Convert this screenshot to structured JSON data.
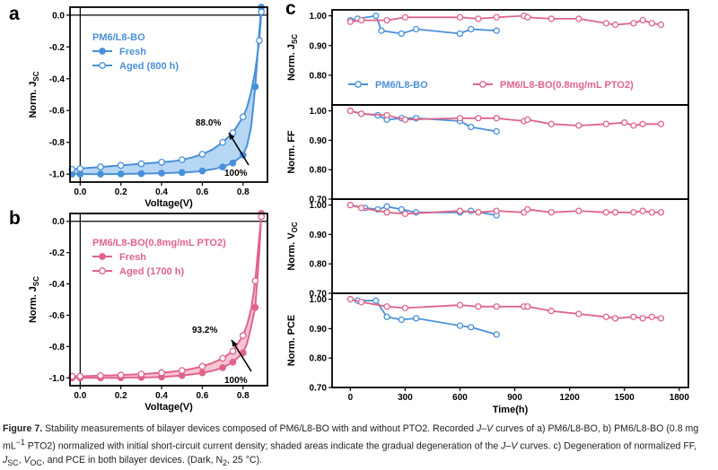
{
  "colors": {
    "blue": "#4a90d9",
    "blue_fill": "#a9d0f2",
    "pink": "#e0648a",
    "pink_fill": "#f4bccc",
    "axis": "#000000"
  },
  "chart_data": [
    {
      "panel": "a",
      "type": "line",
      "title": "PM6/L8-BO",
      "xlabel": "Voltage(V)",
      "ylabel_main": "Norm. J",
      "ylabel_sub": "SC",
      "xlim": [
        -0.05,
        0.92
      ],
      "ylim": [
        -1.05,
        0.05
      ],
      "xticks": [
        0.0,
        0.2,
        0.4,
        0.6,
        0.8
      ],
      "xtick_labels": [
        "0.0",
        "0.2",
        "0.4",
        "0.6",
        "0.8"
      ],
      "yticks": [
        0.0,
        -0.2,
        -0.4,
        -0.6,
        -0.8,
        -1.0
      ],
      "ytick_labels": [
        "0.0",
        "-0.2",
        "-0.4",
        "-0.6",
        "-0.8",
        "-1.0"
      ],
      "legend": [
        "Fresh",
        "Aged (800 h)"
      ],
      "series": [
        {
          "name": "Fresh",
          "x": [
            -0.04,
            0.0,
            0.05,
            0.1,
            0.15,
            0.2,
            0.25,
            0.3,
            0.35,
            0.4,
            0.45,
            0.5,
            0.55,
            0.6,
            0.65,
            0.7,
            0.75,
            0.8,
            0.82,
            0.84,
            0.86,
            0.88,
            0.89
          ],
          "y": [
            -1.0,
            -1.0,
            -1.0,
            -1.0,
            -1.0,
            -0.999,
            -0.998,
            -0.997,
            -0.996,
            -0.994,
            -0.992,
            -0.99,
            -0.986,
            -0.98,
            -0.97,
            -0.955,
            -0.93,
            -0.88,
            -0.82,
            -0.7,
            -0.45,
            -0.1,
            0.05
          ],
          "markers": [
            0,
            1,
            3,
            5,
            7,
            9,
            11,
            13,
            15,
            16,
            17,
            20,
            22
          ]
        },
        {
          "name": "Aged (800 h)",
          "x": [
            -0.04,
            0.0,
            0.05,
            0.1,
            0.15,
            0.2,
            0.25,
            0.3,
            0.35,
            0.4,
            0.45,
            0.5,
            0.55,
            0.6,
            0.65,
            0.7,
            0.75,
            0.8,
            0.82,
            0.84,
            0.86,
            0.88,
            0.89
          ],
          "y": [
            -0.97,
            -0.965,
            -0.96,
            -0.955,
            -0.95,
            -0.945,
            -0.94,
            -0.935,
            -0.93,
            -0.925,
            -0.92,
            -0.91,
            -0.895,
            -0.875,
            -0.845,
            -0.8,
            -0.74,
            -0.64,
            -0.58,
            -0.48,
            -0.35,
            -0.16,
            0.02
          ],
          "markers": [
            0,
            1,
            3,
            5,
            7,
            9,
            11,
            13,
            15,
            16,
            17,
            21,
            22
          ]
        }
      ],
      "annotations": [
        {
          "text": "88.0%"
        },
        {
          "text": "100%"
        }
      ]
    },
    {
      "panel": "b",
      "type": "line",
      "title": "PM6/L8-BO(0.8mg/mL PTO2)",
      "xlabel": "Voltage(V)",
      "ylabel_main": "Norm. J",
      "ylabel_sub": "SC",
      "xlim": [
        -0.05,
        0.92
      ],
      "ylim": [
        -1.05,
        0.05
      ],
      "xticks": [
        0.0,
        0.2,
        0.4,
        0.6,
        0.8
      ],
      "xtick_labels": [
        "0.0",
        "0.2",
        "0.4",
        "0.6",
        "0.8"
      ],
      "yticks": [
        0.0,
        -0.2,
        -0.4,
        -0.6,
        -0.8,
        -1.0
      ],
      "ytick_labels": [
        "0.0",
        "-0.2",
        "-0.4",
        "-0.6",
        "-0.8",
        "-1.0"
      ],
      "legend": [
        "Fresh",
        "Aged (1700 h)"
      ],
      "series": [
        {
          "name": "Fresh",
          "x": [
            -0.04,
            0.0,
            0.05,
            0.1,
            0.15,
            0.2,
            0.25,
            0.3,
            0.35,
            0.4,
            0.45,
            0.5,
            0.55,
            0.6,
            0.65,
            0.7,
            0.75,
            0.8,
            0.82,
            0.84,
            0.86,
            0.88,
            0.89
          ],
          "y": [
            -1.0,
            -1.0,
            -1.0,
            -1.0,
            -1.0,
            -0.999,
            -0.998,
            -0.997,
            -0.996,
            -0.994,
            -0.99,
            -0.985,
            -0.978,
            -0.968,
            -0.955,
            -0.935,
            -0.9,
            -0.84,
            -0.78,
            -0.67,
            -0.55,
            -0.2,
            0.05
          ],
          "markers": [
            0,
            1,
            3,
            5,
            7,
            9,
            11,
            13,
            15,
            16,
            17,
            20,
            22
          ]
        },
        {
          "name": "Aged (1700 h)",
          "x": [
            -0.04,
            0.0,
            0.05,
            0.1,
            0.15,
            0.2,
            0.25,
            0.3,
            0.35,
            0.4,
            0.45,
            0.5,
            0.55,
            0.6,
            0.65,
            0.7,
            0.75,
            0.8,
            0.82,
            0.84,
            0.86,
            0.88,
            0.89
          ],
          "y": [
            -0.99,
            -0.99,
            -0.988,
            -0.986,
            -0.984,
            -0.982,
            -0.979,
            -0.976,
            -0.972,
            -0.967,
            -0.961,
            -0.953,
            -0.942,
            -0.927,
            -0.905,
            -0.875,
            -0.83,
            -0.73,
            -0.66,
            -0.56,
            -0.38,
            -0.1,
            0.03
          ],
          "markers": [
            0,
            1,
            3,
            5,
            7,
            9,
            11,
            13,
            15,
            16,
            17,
            20,
            22
          ]
        }
      ],
      "annotations": [
        {
          "text": "93.2%"
        },
        {
          "text": "100%"
        }
      ]
    },
    {
      "panel": "c",
      "type": "line",
      "xlabel": "Time(h)",
      "xlim": [
        -100,
        1850
      ],
      "xticks": [
        0,
        300,
        600,
        900,
        1200,
        1500,
        1800
      ],
      "xtick_labels": [
        "0",
        "300",
        "600",
        "900",
        "1200",
        "1500",
        "1800"
      ],
      "legend": [
        "PM6/L8-BO",
        "PM6/L8-BO(0.8mg/mL PTO2)"
      ],
      "subplots": [
        {
          "ylabel_main": "Norm. J",
          "ylabel_sub": "SC",
          "ylim": [
            0.7,
            1.02
          ],
          "yticks": [
            0.8,
            0.9,
            1.0
          ],
          "ytick_labels": [
            "0.80",
            "0.90",
            "1.00"
          ],
          "series": [
            {
              "name": "PM6/L8-BO",
              "x": [
                0,
                40,
                140,
                170,
                280,
                360,
                600,
                660,
                800
              ],
              "y": [
                0.985,
                0.99,
                1.0,
                0.95,
                0.94,
                0.955,
                0.94,
                0.955,
                0.95
              ]
            },
            {
              "name": "PM6/L8-BO(0.8mg/mL PTO2)",
              "x": [
                0,
                60,
                200,
                300,
                600,
                700,
                800,
                950,
                970,
                1100,
                1250,
                1400,
                1450,
                1550,
                1600,
                1650,
                1700
              ],
              "y": [
                0.98,
                0.985,
                0.985,
                0.995,
                0.995,
                0.99,
                0.995,
                1.0,
                0.995,
                0.99,
                0.99,
                0.975,
                0.97,
                0.975,
                0.985,
                0.975,
                0.97
              ]
            }
          ]
        },
        {
          "ylabel_main": "Norm. FF",
          "ylabel_sub": "",
          "ylim": [
            0.7,
            1.02
          ],
          "yticks": [
            0.7,
            0.8,
            0.9,
            1.0
          ],
          "ytick_labels": [
            "0.70",
            "0.80",
            "0.90",
            "1.00"
          ],
          "series": [
            {
              "name": "PM6/L8-BO",
              "x": [
                0,
                60,
                150,
                200,
                280,
                360,
                600,
                660,
                800
              ],
              "y": [
                1.0,
                0.99,
                0.985,
                0.97,
                0.975,
                0.975,
                0.965,
                0.945,
                0.93
              ]
            },
            {
              "name": "PM6/L8-BO(0.8mg/mL PTO2)",
              "x": [
                0,
                60,
                200,
                300,
                600,
                700,
                800,
                950,
                970,
                1100,
                1250,
                1400,
                1500,
                1550,
                1600,
                1700
              ],
              "y": [
                1.0,
                0.99,
                0.985,
                0.97,
                0.975,
                0.975,
                0.975,
                0.965,
                0.97,
                0.955,
                0.95,
                0.955,
                0.96,
                0.95,
                0.955,
                0.955
              ]
            }
          ]
        },
        {
          "ylabel_main": "Norm. V",
          "ylabel_sub": "OC",
          "ylim": [
            0.7,
            1.02
          ],
          "yticks": [
            0.7,
            0.8,
            0.9,
            1.0
          ],
          "ytick_labels": [
            "0.70",
            "0.80",
            "0.90",
            "1.00"
          ],
          "series": [
            {
              "name": "PM6/L8-BO",
              "x": [
                0,
                80,
                150,
                200,
                280,
                360,
                600,
                660,
                800
              ],
              "y": [
                1.0,
                0.99,
                0.985,
                0.995,
                0.985,
                0.975,
                0.975,
                0.98,
                0.965
              ]
            },
            {
              "name": "PM6/L8-BO(0.8mg/mL PTO2)",
              "x": [
                0,
                60,
                200,
                300,
                600,
                700,
                800,
                950,
                970,
                1100,
                1250,
                1400,
                1450,
                1550,
                1600,
                1650,
                1700
              ],
              "y": [
                1.0,
                0.99,
                0.975,
                0.97,
                0.98,
                0.975,
                0.98,
                0.975,
                0.985,
                0.975,
                0.98,
                0.975,
                0.975,
                0.975,
                0.98,
                0.975,
                0.975
              ]
            }
          ]
        },
        {
          "ylabel_main": "Norm. PCE",
          "ylabel_sub": "",
          "ylim": [
            0.7,
            1.02
          ],
          "yticks": [
            0.7,
            0.8,
            0.9,
            1.0
          ],
          "ytick_labels": [
            "0.70",
            "0.80",
            "0.90",
            "1.00"
          ],
          "series": [
            {
              "name": "PM6/L8-BO",
              "x": [
                0,
                40,
                140,
                200,
                280,
                360,
                600,
                660,
                800
              ],
              "y": [
                1.0,
                0.995,
                0.995,
                0.94,
                0.93,
                0.935,
                0.91,
                0.905,
                0.88
              ]
            },
            {
              "name": "PM6/L8-BO(0.8mg/mL PTO2)",
              "x": [
                0,
                60,
                200,
                300,
                600,
                700,
                800,
                950,
                970,
                1100,
                1250,
                1400,
                1450,
                1550,
                1600,
                1650,
                1700
              ],
              "y": [
                1.0,
                0.99,
                0.975,
                0.97,
                0.98,
                0.975,
                0.975,
                0.975,
                0.975,
                0.96,
                0.95,
                0.94,
                0.935,
                0.94,
                0.935,
                0.94,
                0.935
              ]
            }
          ]
        }
      ]
    }
  ],
  "caption": {
    "label": "Figure 7.",
    "parts": [
      " Stability measurements of bilayer devices composed of PM6/L8-BO with and without PTO2. Recorded ",
      " curves of a) PM6/L8-BO, b) PM6/L8-BO (0.8 mg mL",
      " PTO2) normalized with initial short-circuit current density; shaded areas indicate the gradual degeneration of the ",
      " curves. c) Degeneration of normalized FF, ",
      ", and PCE in both bilayer devices. (Dark, N",
      ", 25 °C)."
    ],
    "jv": "J–V",
    "sup": "−1",
    "jsc": "J",
    "jsc_sub": "SC",
    "voc": "V",
    "voc_sub": "OC",
    "n2_sub": "2"
  }
}
